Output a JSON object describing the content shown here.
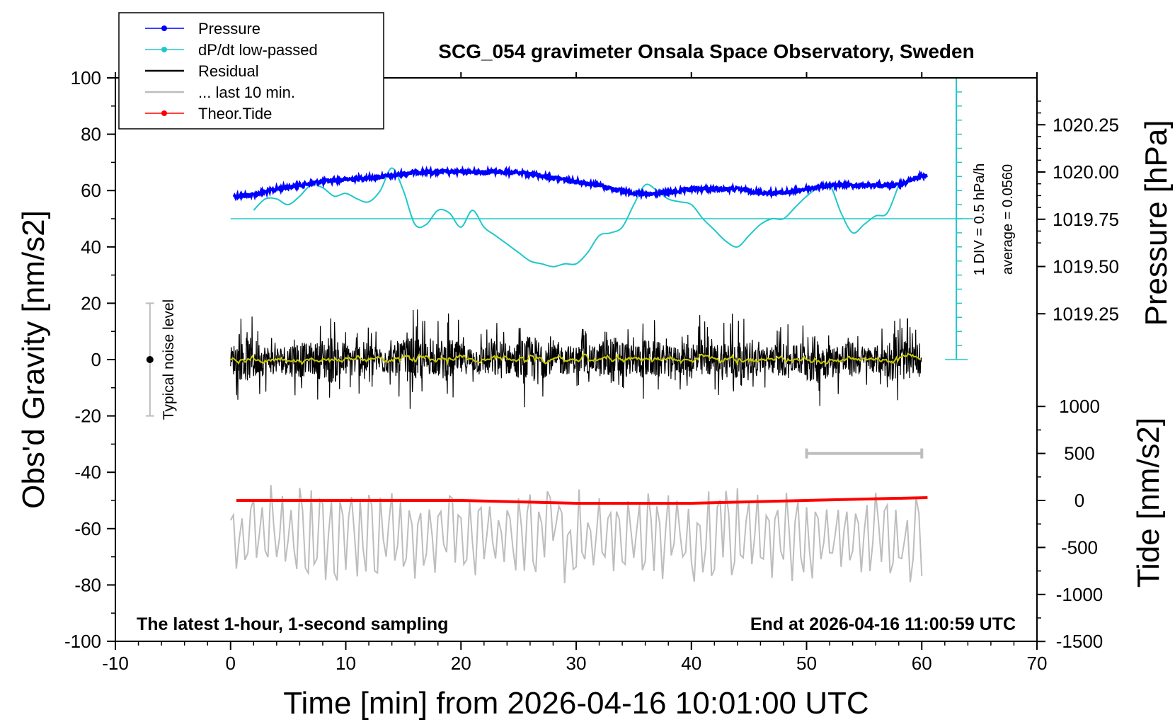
{
  "chart_data": {
    "type": "line",
    "title": "SCG_054 gravimeter Onsala Space Observatory, Sweden",
    "xlabel": "Time [min] from 2026-04-16 10:01:00 UTC",
    "ylabel_left": "Obs'd Gravity [nm/s2]",
    "ylabel_right_pressure": "Pressure [hPa]",
    "ylabel_right_tide": "Tide [nm/s2]",
    "xlim": [
      -10,
      70
    ],
    "xticks": [
      "-10",
      "0",
      "10",
      "20",
      "30",
      "40",
      "50",
      "60",
      "70"
    ],
    "ylim": [
      -100,
      100
    ],
    "yticks": [
      "100",
      "80",
      "60",
      "40",
      "20",
      "0",
      "-20",
      "-40",
      "-60",
      "-80",
      "-100"
    ],
    "pressure_axis": {
      "ticks": [
        "1020.25",
        "1020.00",
        "1019.75",
        "1019.50",
        "1019.25"
      ],
      "tick_values": [
        1020.25,
        1020.0,
        1019.75,
        1019.5,
        1019.25
      ]
    },
    "tide_axis": {
      "ticks": [
        "1000",
        "500",
        "0",
        "-500",
        "-1000",
        "-1500"
      ],
      "tick_values": [
        1000,
        500,
        0,
        -500,
        -1000,
        -1500
      ]
    },
    "legend": {
      "placement": "top-left",
      "entries": [
        {
          "label": "Pressure",
          "color": "#0000ff",
          "marker": true
        },
        {
          "label": "dP/dt low-passed",
          "color": "#20c8c8",
          "marker": true
        },
        {
          "label": "Residual",
          "color": "#000000",
          "marker": false
        },
        {
          "label": "... last 10 min.",
          "color": "#bdbdbd",
          "marker": false
        },
        {
          "label": "Theor.Tide",
          "color": "#ff0000",
          "marker": true
        }
      ]
    },
    "annotations": {
      "bottom_left": "The latest 1-hour, 1-second sampling",
      "bottom_right": "End at 2026-04-16 11:00:59 UTC",
      "noise_label": "Typical noise level",
      "div_label": "1 DIV = 0.5 hPa/h",
      "average_label": "average = 0.0560"
    },
    "noise_bar": {
      "x": -7,
      "y": 0,
      "low": -20,
      "high": 20
    },
    "pressure_series": {
      "x": [
        0,
        2,
        4,
        6,
        8,
        10,
        12,
        14,
        16,
        18,
        20,
        22,
        24,
        26,
        28,
        30,
        32,
        34,
        36,
        38,
        40,
        42,
        44,
        46,
        48,
        50,
        52,
        54,
        56,
        58,
        60
      ],
      "y": [
        1019.87,
        1019.88,
        1019.91,
        1019.93,
        1019.95,
        1019.96,
        1019.97,
        1019.98,
        1020.0,
        1020.0,
        1020.0,
        1020.0,
        1020.0,
        1019.99,
        1019.97,
        1019.95,
        1019.93,
        1019.9,
        1019.88,
        1019.89,
        1019.91,
        1019.91,
        1019.91,
        1019.89,
        1019.89,
        1019.91,
        1019.93,
        1019.93,
        1019.93,
        1019.93,
        1019.98
      ]
    },
    "dpdt_series": {
      "baseline": 50,
      "x": [
        2,
        3,
        4,
        5,
        6,
        7,
        8,
        9,
        10,
        11,
        12,
        13,
        14,
        15,
        16,
        17,
        18,
        19,
        20,
        21,
        22,
        23,
        24,
        25,
        26,
        27,
        28,
        29,
        30,
        31,
        32,
        33,
        34,
        35,
        36,
        37,
        38,
        39,
        40,
        41,
        42,
        43,
        44,
        45,
        46,
        47,
        48,
        49,
        50,
        51,
        52,
        53,
        54,
        55,
        56,
        57,
        58
      ],
      "y": [
        53,
        57,
        57,
        55,
        58,
        62,
        61,
        58,
        59,
        57,
        56,
        60,
        68,
        60,
        48,
        48,
        53,
        52,
        47,
        53,
        47,
        44,
        41,
        38,
        35,
        34,
        33,
        34,
        34,
        38,
        44,
        45,
        47,
        55,
        62,
        60,
        57,
        56,
        55,
        50,
        46,
        42,
        40,
        44,
        48,
        50,
        50,
        54,
        58,
        61,
        62,
        52,
        45,
        48,
        51,
        52,
        62
      ]
    },
    "residual_series": {
      "x_start": 0,
      "x_end": 60,
      "amplitude": 19
    },
    "last10_series": {
      "x_start": 0,
      "x_end": 60,
      "center": -62,
      "amplitude": 18
    },
    "tide_series": {
      "x": [
        0.5,
        10,
        20,
        30,
        40,
        50,
        60.5
      ],
      "y": [
        -50,
        -50,
        -50,
        -51,
        -51,
        -50,
        -49
      ]
    },
    "range_bar": {
      "x_start": 50,
      "x_end": 60,
      "tide_value": 500
    },
    "div_scale": {
      "x": 63,
      "y_bottom": 0,
      "y_top": 100,
      "divisions": 20
    }
  }
}
